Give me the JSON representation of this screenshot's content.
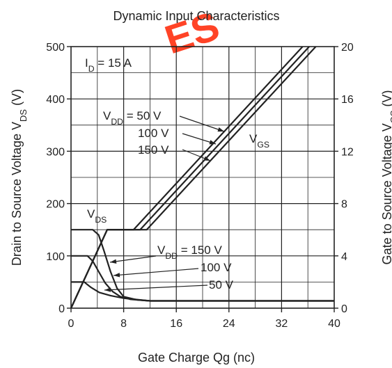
{
  "chart_data": {
    "type": "line",
    "title": "Dynamic Input Characteristics",
    "xlabel": "Gate Charge     Qg    (nc)",
    "ylabel_left": {
      "main": "Drain to Source Voltage",
      "sym": "V",
      "sub": "DS",
      "unit": "(V)"
    },
    "ylabel_right": {
      "main": "Gate to Source Voltage",
      "sym": "V",
      "sub": "GS",
      "unit": "(V)"
    },
    "xlim": [
      0,
      40
    ],
    "ylim_left": [
      0,
      500
    ],
    "ylim_right": [
      0,
      20
    ],
    "xticks": [
      "0",
      "8",
      "16",
      "24",
      "32",
      "40"
    ],
    "yticks_left": [
      "0",
      "100",
      "200",
      "300",
      "400",
      "500"
    ],
    "yticks_right": [
      "0",
      "4",
      "8",
      "12",
      "16",
      "20"
    ],
    "grid": true,
    "condition": {
      "sym": "I",
      "sub": "D",
      "rest": " = 15 A"
    },
    "watermark": "ES",
    "vgs_series": [
      {
        "name": "V_DD = 50 V",
        "axis": "right",
        "points": [
          [
            0,
            0
          ],
          [
            5.5,
            6
          ],
          [
            9.5,
            6
          ],
          [
            35.2,
            20
          ]
        ]
      },
      {
        "name": "100 V",
        "axis": "right",
        "points": [
          [
            0,
            0
          ],
          [
            5.5,
            6
          ],
          [
            10.5,
            6
          ],
          [
            36.2,
            20
          ]
        ]
      },
      {
        "name": "150 V",
        "axis": "right",
        "points": [
          [
            0,
            0
          ],
          [
            5.5,
            6
          ],
          [
            11.5,
            6
          ],
          [
            37.2,
            20
          ]
        ]
      }
    ],
    "vds_series": [
      {
        "name": "150 V",
        "axis": "left",
        "points": [
          [
            0,
            150
          ],
          [
            3.3,
            150
          ],
          [
            4.2,
            140
          ],
          [
            5.0,
            110
          ],
          [
            6.0,
            70
          ],
          [
            7.0,
            38
          ],
          [
            8.0,
            22
          ],
          [
            10,
            16
          ],
          [
            12,
            14
          ],
          [
            40,
            14
          ]
        ]
      },
      {
        "name": "100 V",
        "axis": "left",
        "points": [
          [
            0,
            100
          ],
          [
            2.5,
            100
          ],
          [
            3.3,
            90
          ],
          [
            4.2,
            70
          ],
          [
            5.2,
            48
          ],
          [
            6.3,
            32
          ],
          [
            7.5,
            22
          ],
          [
            9,
            17
          ],
          [
            12,
            14
          ],
          [
            40,
            14
          ]
        ]
      },
      {
        "name": "50 V",
        "axis": "left",
        "points": [
          [
            0,
            50
          ],
          [
            2.0,
            50
          ],
          [
            3.0,
            40
          ],
          [
            4.3,
            30
          ],
          [
            6,
            24
          ],
          [
            8,
            19
          ],
          [
            12,
            14
          ],
          [
            40,
            14
          ]
        ]
      }
    ],
    "annotations": {
      "vds_curve_label": {
        "sym": "V",
        "sub": "DS"
      },
      "vgs_curve_label": {
        "sym": "V",
        "sub": "GS"
      },
      "vgs_labels": [
        {
          "prefix": "V",
          "sub": "DD",
          "rest": " = 50 V"
        },
        {
          "text": "100 V"
        },
        {
          "text": "150 V"
        }
      ],
      "vds_labels": [
        {
          "prefix": "V",
          "sub": "DD",
          "rest": " = 150 V"
        },
        {
          "text": "100 V"
        },
        {
          "text": "50 V"
        }
      ]
    },
    "colors": {
      "line": "#222222",
      "grid": "#222222",
      "watermark": "#ff2200"
    }
  }
}
